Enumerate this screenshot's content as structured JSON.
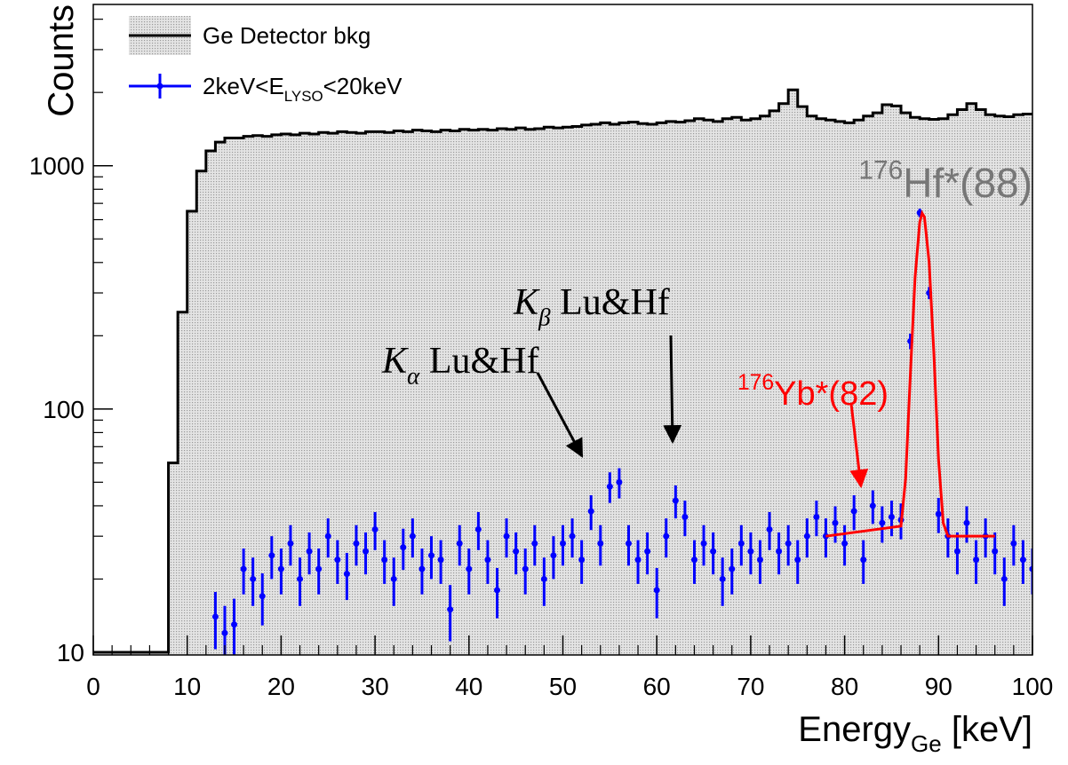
{
  "chart_data": {
    "type": "histogram",
    "y_label": "Counts",
    "x_label": "Energy_{Ge} [keV]",
    "xlim": [
      0,
      100
    ],
    "xticks": [
      0,
      10,
      20,
      30,
      40,
      50,
      60,
      70,
      80,
      90,
      100
    ],
    "xminor_ticks": [
      2,
      4,
      6,
      8,
      12,
      14,
      16,
      18,
      22,
      24,
      26,
      28,
      32,
      34,
      36,
      38,
      42,
      44,
      46,
      48,
      52,
      54,
      56,
      58,
      62,
      64,
      66,
      68,
      72,
      74,
      76,
      78,
      82,
      84,
      86,
      88,
      92,
      94,
      96,
      98
    ],
    "ylim": [
      9.75,
      4600
    ],
    "log_y": true,
    "yticks": [
      10,
      100,
      1000
    ],
    "yminor_ticks": [
      20,
      30,
      40,
      50,
      60,
      70,
      80,
      90,
      200,
      300,
      400,
      500,
      600,
      700,
      800,
      900,
      2000,
      3000,
      4000
    ],
    "legend": "top-left",
    "series": [
      {
        "name": "Ge Detector bkg",
        "type": "histogram",
        "color": "#000000",
        "bins": [
          0,
          1,
          2,
          3,
          4,
          5,
          6,
          7,
          8,
          9,
          10,
          11,
          12,
          13,
          14,
          15,
          16,
          17,
          18,
          19,
          20,
          21,
          22,
          23,
          24,
          25,
          26,
          27,
          28,
          29,
          30,
          31,
          32,
          33,
          34,
          35,
          36,
          37,
          38,
          39,
          40,
          41,
          42,
          43,
          44,
          45,
          46,
          47,
          48,
          49,
          50,
          51,
          52,
          53,
          54,
          55,
          56,
          57,
          58,
          59,
          60,
          61,
          62,
          63,
          64,
          65,
          66,
          67,
          68,
          69,
          70,
          71,
          72,
          73,
          74,
          75,
          76,
          77,
          78,
          79,
          80,
          81,
          82,
          83,
          84,
          85,
          86,
          87,
          88,
          89,
          90,
          91,
          92,
          93,
          94,
          95,
          96,
          97,
          98,
          99,
          100
        ],
        "values": [
          10,
          10,
          10,
          10,
          10,
          10,
          10,
          10,
          60,
          250,
          650,
          950,
          1150,
          1250,
          1300,
          1300,
          1320,
          1330,
          1320,
          1340,
          1350,
          1340,
          1360,
          1350,
          1370,
          1360,
          1380,
          1370,
          1360,
          1380,
          1380,
          1370,
          1390,
          1380,
          1400,
          1390,
          1380,
          1400,
          1390,
          1410,
          1400,
          1410,
          1400,
          1420,
          1410,
          1430,
          1410,
          1420,
          1440,
          1430,
          1440,
          1450,
          1470,
          1480,
          1500,
          1480,
          1500,
          1510,
          1490,
          1480,
          1500,
          1520,
          1510,
          1530,
          1560,
          1540,
          1520,
          1560,
          1580,
          1540,
          1560,
          1600,
          1680,
          1800,
          2050,
          1750,
          1600,
          1560,
          1540,
          1520,
          1500,
          1540,
          1600,
          1650,
          1780,
          1760,
          1650,
          1580,
          1560,
          1550,
          1560,
          1620,
          1700,
          1800,
          1700,
          1620,
          1600,
          1590,
          1620,
          1630
        ]
      },
      {
        "name": "2keV<E_{LYSO}<20keV",
        "type": "errorbar",
        "color": "#0000ff",
        "x": [
          13,
          14,
          15,
          16,
          17,
          18,
          19,
          20,
          21,
          22,
          23,
          24,
          25,
          26,
          27,
          28,
          29,
          30,
          31,
          32,
          33,
          34,
          35,
          36,
          37,
          38,
          39,
          40,
          41,
          42,
          43,
          44,
          45,
          46,
          47,
          48,
          49,
          50,
          51,
          52,
          53,
          54,
          55,
          56,
          57,
          58,
          59,
          60,
          61,
          62,
          63,
          64,
          65,
          66,
          67,
          68,
          69,
          70,
          71,
          72,
          73,
          74,
          75,
          76,
          77,
          78,
          79,
          80,
          81,
          82,
          83,
          84,
          85,
          86,
          87,
          88,
          89,
          90,
          91,
          92,
          93,
          94,
          95,
          96,
          97,
          98,
          99,
          100
        ],
        "values": [
          14,
          12,
          13,
          22,
          20,
          17,
          25,
          22,
          28,
          20,
          26,
          22,
          30,
          24,
          21,
          28,
          26,
          32,
          24,
          20,
          27,
          30,
          22,
          25,
          24,
          15,
          28,
          22,
          32,
          24,
          18,
          30,
          26,
          22,
          28,
          20,
          25,
          28,
          30,
          24,
          38,
          28,
          48,
          50,
          28,
          24,
          26,
          18,
          30,
          42,
          36,
          24,
          28,
          26,
          20,
          22,
          28,
          26,
          24,
          32,
          26,
          28,
          24,
          30,
          36,
          30,
          34,
          28,
          38,
          24,
          40,
          34,
          36,
          35,
          190,
          640,
          300,
          37,
          30,
          26,
          34,
          24,
          30,
          26,
          20,
          28,
          24,
          22
        ],
        "errors": [
          3.7,
          3.5,
          3.6,
          4.7,
          4.5,
          4.1,
          5,
          4.7,
          5.3,
          4.5,
          5.1,
          4.7,
          5.5,
          4.9,
          4.6,
          5.3,
          5.1,
          5.7,
          4.9,
          4.5,
          5.2,
          5.5,
          4.7,
          5,
          4.9,
          3.9,
          5.3,
          4.7,
          5.7,
          4.9,
          4.2,
          5.5,
          5.1,
          4.7,
          5.3,
          4.5,
          5,
          5.3,
          5.5,
          4.9,
          6.2,
          5.3,
          6.9,
          7.1,
          5.3,
          4.9,
          5.1,
          4.2,
          5.5,
          6.5,
          6,
          4.9,
          5.3,
          5.1,
          4.5,
          4.7,
          5.3,
          5.1,
          4.9,
          5.7,
          5.1,
          5.3,
          4.9,
          5.5,
          6,
          5.5,
          5.8,
          5.3,
          6.2,
          4.9,
          6.3,
          5.8,
          6,
          5.9,
          13.8,
          25.3,
          17.3,
          6.1,
          5.5,
          5.1,
          5.8,
          4.9,
          5.5,
          5.1,
          4.5,
          5.3,
          4.9,
          4.7
        ]
      },
      {
        "type": "line",
        "color": "#ff0000",
        "x": [
          78,
          86,
          86.5,
          87,
          87.5,
          88,
          88.25,
          88.5,
          89,
          89.5,
          90,
          90.5,
          91,
          96
        ],
        "values": [
          30,
          33,
          52,
          139,
          347,
          586,
          638,
          615,
          400,
          170,
          62,
          34,
          30,
          30
        ]
      }
    ],
    "annotations": [
      {
        "text": "K_{α} Lu&Hf",
        "color": "#000000"
      },
      {
        "text": "K_{β} Lu&Hf",
        "color": "#000000"
      },
      {
        "text": "^{176}Hf*(88)",
        "color": "#777777"
      },
      {
        "text": "^{176}Yb*(82)",
        "color": "#ff0000"
      }
    ]
  }
}
